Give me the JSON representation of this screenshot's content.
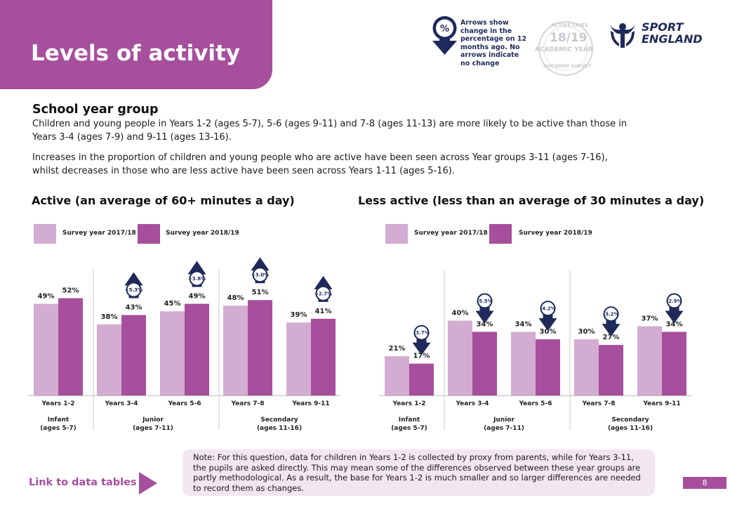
{
  "header": {
    "title": "Levels of activity"
  },
  "legend_note": {
    "icon": "percent-arrow-icon",
    "text": "Arrows show change in the percentage on 12 months ago. No arrows indicate no change"
  },
  "badge": {
    "year": "18/19",
    "sub": "ACADEMIC YEAR",
    "arc_top": "ACTIVE LIVES",
    "arc_bottom": "CHILDREN SURVEY"
  },
  "logo": {
    "line1": "SPORT",
    "line2": "ENGLAND"
  },
  "section": {
    "title": "School year group",
    "para1": "Children and young people in Years 1-2 (ages 5-7), 5-6 (ages 9-11) and 7-8 (ages 11-13) are more likely to be active than those in Years 3-4 (ages 7-9) and 9-11 (ages 13-16).",
    "para2": "Increases in the proportion of children and young people who are active have been seen across Year groups 3-11 (ages 7-16), whilst decreases in those who are less active have been seen across Years 1-11 (ages 5-16)."
  },
  "colors": {
    "brand": "#a64f9d",
    "light": "#d3acd1",
    "navy": "#1f2a5a",
    "note_bg": "#f2e6f1"
  },
  "chart_data": [
    {
      "type": "bar",
      "title": "Active (an average of 60+ minutes a day)",
      "categories": [
        "Years 1-2",
        "Years 3-4",
        "Years 5-6",
        "Years 7-8",
        "Years 9-11"
      ],
      "groups": [
        {
          "label": "Infant",
          "sub": "(ages 5-7)",
          "categories": [
            0
          ]
        },
        {
          "label": "Junior",
          "sub": "(ages 7-11)",
          "categories": [
            1,
            2
          ]
        },
        {
          "label": "Secondary",
          "sub": "(ages 11-16)",
          "categories": [
            3,
            4
          ]
        }
      ],
      "series": [
        {
          "name": "Survey year 2017/18",
          "values": [
            49,
            38,
            45,
            48,
            39
          ],
          "labels": [
            "49%",
            "38%",
            "45%",
            "48%",
            "39%"
          ]
        },
        {
          "name": "Survey year 2018/19",
          "values": [
            52,
            43,
            49,
            51,
            41
          ],
          "labels": [
            "52%",
            "43%",
            "49%",
            "51%",
            "41%"
          ]
        }
      ],
      "changes": [
        null,
        "+5.3%",
        "+3.8%",
        "+3.0%",
        "+2.7%"
      ],
      "direction": "up",
      "ylim": [
        0,
        80
      ],
      "grid": false
    },
    {
      "type": "bar",
      "title": "Less active (less than an average of 30 minutes a day)",
      "categories": [
        "Years 1-2",
        "Years 3-4",
        "Years 5-6",
        "Years 7-8",
        "Years 9-11"
      ],
      "groups": [
        {
          "label": "Infant",
          "sub": "(ages 5-7)",
          "categories": [
            0
          ]
        },
        {
          "label": "Junior",
          "sub": "(ages 7-11)",
          "categories": [
            1,
            2
          ]
        },
        {
          "label": "Secondary",
          "sub": "(ages 11-16)",
          "categories": [
            3,
            4
          ]
        }
      ],
      "series": [
        {
          "name": "Survey year 2017/18",
          "values": [
            21,
            40,
            34,
            30,
            37
          ],
          "labels": [
            "21%",
            "40%",
            "34%",
            "30%",
            "37%"
          ]
        },
        {
          "name": "Survey year 2018/19",
          "values": [
            17,
            34,
            30,
            27,
            34
          ],
          "labels": [
            "17%",
            "34%",
            "30%",
            "27%",
            "34%"
          ]
        }
      ],
      "changes": [
        "-3.7%",
        "-5.5%",
        "-4.2%",
        "-3.2%",
        "-2.9%"
      ],
      "direction": "down",
      "ylim": [
        0,
        80
      ],
      "grid": false
    }
  ],
  "note": {
    "text": "Note: For this question, data for children in Years 1-2 is collected by proxy from parents, while for Years 3-11, the pupils are asked directly. This may mean some of the differences observed between these year groups are partly methodological. As a result, the base for Years 1-2 is much smaller and so larger differences are needed to record them as changes."
  },
  "footer": {
    "link": "Link to data tables",
    "page": "8"
  }
}
